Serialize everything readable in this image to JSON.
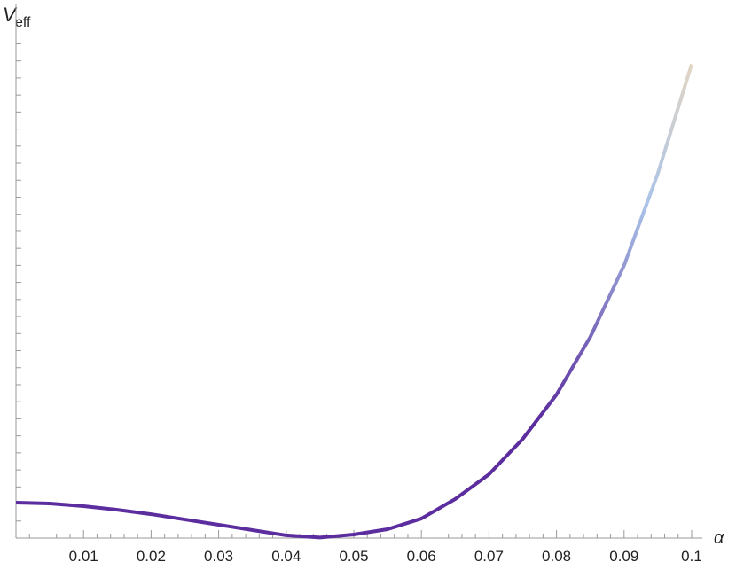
{
  "chart_data": {
    "type": "line",
    "ylabel": "V",
    "ylabel_subscript": "eff",
    "xlabel": "α",
    "x": [
      0,
      0.005,
      0.01,
      0.015,
      0.02,
      0.025,
      0.03,
      0.035,
      0.04,
      0.045,
      0.05,
      0.055,
      0.06,
      0.065,
      0.07,
      0.075,
      0.08,
      0.085,
      0.09,
      0.095,
      0.1
    ],
    "series": [
      {
        "color": "#5b2d9e",
        "values": [
          2.08,
          2.03,
          1.87,
          1.66,
          1.4,
          1.09,
          0.78,
          0.47,
          0.16,
          0.03,
          0.21,
          0.52,
          1.14,
          2.29,
          3.74,
          5.82,
          8.42,
          11.8,
          16.0,
          21.4,
          27.8
        ]
      }
    ],
    "xlim": [
      0,
      0.1
    ],
    "ylim": [
      0,
      31
    ],
    "xticks": [
      0.01,
      0.02,
      0.03,
      0.04,
      0.05,
      0.06,
      0.07,
      0.08,
      0.09,
      0.1
    ],
    "xminorticks": [
      0.002,
      0.004,
      0.006,
      0.008,
      0.012,
      0.014,
      0.016,
      0.018,
      0.022,
      0.024,
      0.026,
      0.028,
      0.032,
      0.034,
      0.036,
      0.038,
      0.042,
      0.044,
      0.046,
      0.048,
      0.052,
      0.054,
      0.056,
      0.058,
      0.062,
      0.064,
      0.066,
      0.068,
      0.072,
      0.074,
      0.076,
      0.078,
      0.082,
      0.084,
      0.086,
      0.088,
      0.092,
      0.094,
      0.096,
      0.098
    ],
    "yminorticks": [
      1,
      2,
      3,
      4,
      5,
      6,
      7,
      8,
      9,
      10,
      11,
      12,
      13,
      14,
      15,
      16,
      17,
      18,
      19,
      20,
      21,
      22,
      23,
      24,
      25,
      26,
      27,
      28,
      29,
      30
    ]
  }
}
